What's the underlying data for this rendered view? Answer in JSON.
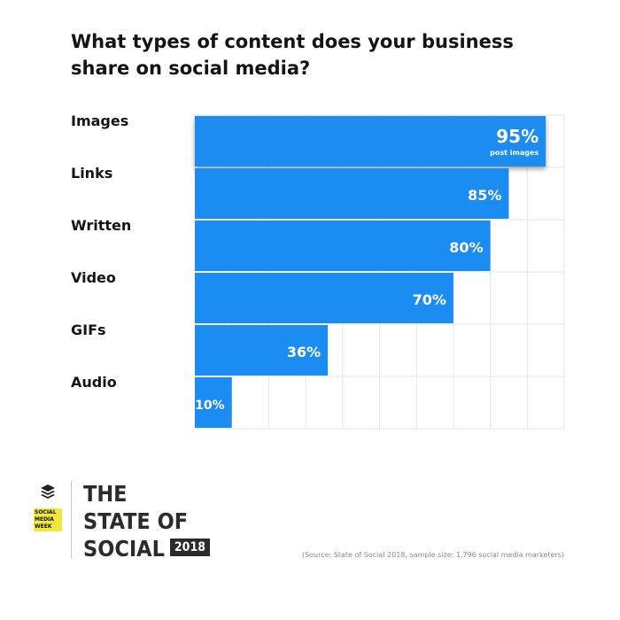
{
  "title": "What types of content does your business share on social media?",
  "chart_data": {
    "type": "bar",
    "orientation": "horizontal",
    "categories": [
      "Images",
      "Links",
      "Written",
      "Video",
      "GIFs",
      "Audio"
    ],
    "values": [
      95,
      85,
      80,
      70,
      36,
      10
    ],
    "value_labels": [
      "95%",
      "85%",
      "80%",
      "70%",
      "36%",
      "10%"
    ],
    "highlight": {
      "category": "Images",
      "sub_label": "post images"
    },
    "xlim": [
      0,
      100
    ],
    "grid": true,
    "bar_color": "#1b8cf1",
    "highlight_color": "#1b8cf1",
    "grid_color": "#e6e6e6"
  },
  "footer": {
    "badge_lines": [
      "SOCIAL",
      "MEDIA",
      "WEEK"
    ],
    "brand_lines": [
      "THE",
      "STATE OF",
      "SOCIAL"
    ],
    "brand_year": "2018",
    "source": "(Source: State of Social 2018, sample size: 1,796 social media marketers)",
    "icons": [
      "buffer-stack-icon"
    ],
    "badge_color": "#f2e73a"
  }
}
